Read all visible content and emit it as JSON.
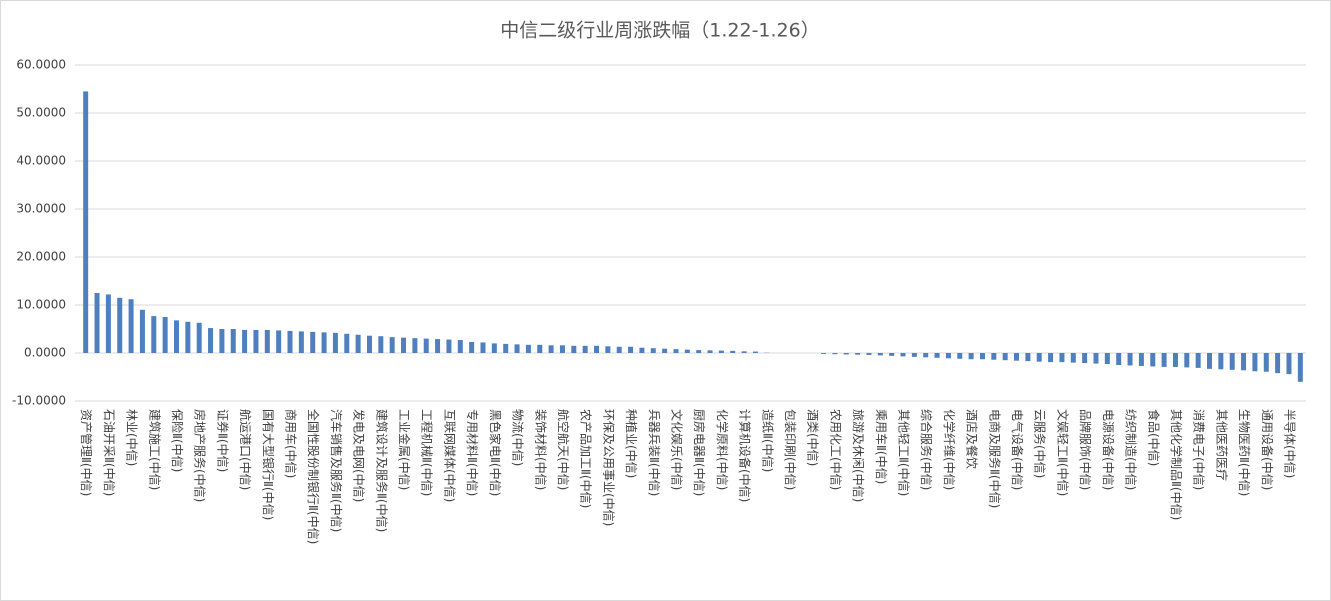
{
  "chart_data": {
    "type": "bar",
    "title": "中信二级行业周涨跌幅（1.22-1.26）",
    "categories": [
      "资产管理Ⅱ(中信)",
      null,
      "石油开采Ⅱ(中信)",
      null,
      "林业(中信)",
      null,
      "建筑施工(中信)",
      null,
      "保险Ⅱ(中信)",
      null,
      "房地产服务(中信)",
      null,
      "证券Ⅱ(中信)",
      null,
      "航运港口(中信)",
      null,
      "国有大型银行Ⅱ(中信)",
      null,
      "商用车(中信)",
      null,
      "全国性股份制银行Ⅱ(中信)",
      null,
      "汽车销售及服务Ⅱ(中信)",
      null,
      "发电及电网(中信)",
      null,
      "建筑设计及服务Ⅱ(中信)",
      null,
      "工业金属(中信)",
      null,
      "工程机械Ⅱ(中信)",
      null,
      "互联网媒体(中信)",
      null,
      "专用材料Ⅱ(中信)",
      null,
      "黑色家电Ⅱ(中信)",
      null,
      "物流(中信)",
      null,
      "装饰材料(中信)",
      null,
      "航空航天(中信)",
      null,
      "农产品加工Ⅱ(中信)",
      null,
      "环保及公用事业(中信)",
      null,
      "种植业(中信)",
      null,
      "兵器兵装Ⅱ(中信)",
      null,
      "文化娱乐(中信)",
      null,
      "厨房电器Ⅱ(中信)",
      null,
      "化学原料(中信)",
      null,
      "计算机设备(中信)",
      null,
      "造纸Ⅱ(中信)",
      null,
      "包装印刷(中信)",
      null,
      "酒类(中信)",
      null,
      "农用化工(中信)",
      null,
      "旅游及休闲(中信)",
      null,
      "乘用车Ⅱ(中信)",
      null,
      "其他轻工Ⅱ(中信)",
      null,
      "综合服务(中信)",
      null,
      "化学纤维(中信)",
      null,
      "酒店及餐饮",
      null,
      "电商及服务Ⅱ(中信)",
      null,
      "电气设备(中信)",
      null,
      "云服务(中信)",
      null,
      "文娱轻工Ⅱ(中信)",
      null,
      "品牌服饰(中信)",
      null,
      "电源设备(中信)",
      null,
      "纺织制造(中信)",
      null,
      "食品(中信)",
      null,
      "其他化学制品Ⅱ(中信)",
      null,
      "消费电子(中信)",
      null,
      "其他医药医疗",
      null,
      "生物医药Ⅱ(中信)",
      null,
      "通用设备(中信)",
      null,
      "半导体(中信)",
      null
    ],
    "values": [
      54.5,
      12.5,
      12.2,
      11.5,
      11.2,
      9.0,
      7.7,
      7.5,
      6.8,
      6.5,
      6.3,
      5.2,
      5.0,
      5.0,
      4.8,
      4.8,
      4.8,
      4.7,
      4.6,
      4.5,
      4.4,
      4.3,
      4.2,
      4.0,
      3.8,
      3.6,
      3.5,
      3.3,
      3.2,
      3.1,
      3.0,
      2.9,
      2.8,
      2.7,
      2.3,
      2.2,
      2.0,
      1.9,
      1.8,
      1.7,
      1.7,
      1.6,
      1.6,
      1.5,
      1.5,
      1.5,
      1.4,
      1.3,
      1.3,
      1.1,
      1.0,
      0.9,
      0.8,
      0.7,
      0.6,
      0.55,
      0.5,
      0.45,
      0.35,
      0.3,
      0.05,
      0,
      0,
      0,
      0,
      -0.2,
      -0.25,
      -0.3,
      -0.35,
      -0.4,
      -0.5,
      -0.6,
      -0.7,
      -0.8,
      -0.9,
      -1.0,
      -1.1,
      -1.2,
      -1.3,
      -1.3,
      -1.4,
      -1.5,
      -1.6,
      -1.7,
      -1.8,
      -1.9,
      -1.9,
      -2.0,
      -2.1,
      -2.2,
      -2.3,
      -2.5,
      -2.6,
      -2.7,
      -2.8,
      -2.9,
      -2.9,
      -3.0,
      -3.1,
      -3.3,
      -3.4,
      -3.5,
      -3.6,
      -3.8,
      -3.9,
      -4.2,
      -4.4,
      -6.0
    ],
    "color": "#4f7fbf",
    "ylim": [
      -10,
      60
    ],
    "yticks": [
      {
        "value": -10,
        "label": "-10.0000"
      },
      {
        "value": 0,
        "label": "0.0000"
      },
      {
        "value": 10,
        "label": "10.0000"
      },
      {
        "value": 20,
        "label": "20.0000"
      },
      {
        "value": 30,
        "label": "30.0000"
      },
      {
        "value": 40,
        "label": "40.0000"
      },
      {
        "value": 50,
        "label": "50.0000"
      },
      {
        "value": 60,
        "label": "60.0000"
      }
    ],
    "grid": true
  }
}
